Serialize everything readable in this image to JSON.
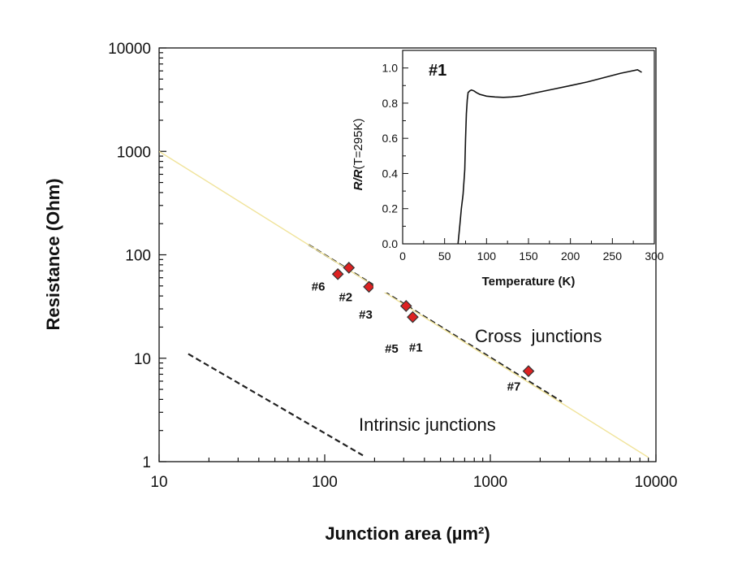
{
  "chart_data": [
    {
      "type": "scatter",
      "xlabel": "Junction area (µm²)",
      "ylabel": "Resistance (Ohm)",
      "xscale": "log",
      "yscale": "log",
      "xlim": [
        10,
        10000
      ],
      "ylim": [
        1,
        10000
      ],
      "x_ticks": [
        {
          "v": 10,
          "label": "10"
        },
        {
          "v": 100,
          "label": "100"
        },
        {
          "v": 1000,
          "label": "1000"
        },
        {
          "v": 10000,
          "label": "10000"
        }
      ],
      "y_ticks": [
        {
          "v": 1,
          "label": "1"
        },
        {
          "v": 10,
          "label": "10"
        },
        {
          "v": 100,
          "label": "100"
        },
        {
          "v": 1000,
          "label": "1000"
        },
        {
          "v": 10000,
          "label": "10000"
        }
      ],
      "grid": false,
      "marker_color": "#dd2222",
      "points": [
        {
          "label": "#6",
          "x": 120,
          "y": 65
        },
        {
          "label": "#2",
          "x": 140,
          "y": 75
        },
        {
          "label": "#3",
          "x": 185,
          "y": 49
        },
        {
          "label": "#1",
          "x": 310,
          "y": 32
        },
        {
          "label": "#5",
          "x": 340,
          "y": 25
        },
        {
          "label": "#7",
          "x": 1700,
          "y": 7.5
        }
      ],
      "lines": [
        {
          "style": "dashed",
          "color": "#222222",
          "x": [
            80,
            2700
          ],
          "y": [
            125,
            3.8
          ]
        },
        {
          "style": "dashed",
          "color": "#222222",
          "x": [
            15,
            170
          ],
          "y": [
            11,
            1.15
          ]
        },
        {
          "style": "solid",
          "color": "#f0e39a",
          "x": [
            10,
            9000
          ],
          "y": [
            1000,
            1.1
          ]
        }
      ],
      "annotations": [
        "Cross  junctions",
        "Intrinsic junctions"
      ]
    },
    {
      "type": "line",
      "title": "#1",
      "xlabel": "Temperature (K)",
      "ylabel_italic": "R/R",
      "ylabel_rest": "(T=295K)",
      "xlim": [
        0,
        300
      ],
      "ylim": [
        0,
        1.1
      ],
      "x_ticks": [
        0,
        50,
        100,
        150,
        200,
        250,
        300
      ],
      "y_ticks": [
        {
          "v": 0.0,
          "label": "0.0"
        },
        {
          "v": 0.2,
          "label": "0.2"
        },
        {
          "v": 0.4,
          "label": "0.4"
        },
        {
          "v": 0.6,
          "label": "0.6"
        },
        {
          "v": 0.8,
          "label": "0.8"
        },
        {
          "v": 1.0,
          "label": "1.0"
        }
      ],
      "series": [
        {
          "x": [
            66,
            68,
            70,
            72,
            74,
            75,
            76,
            77,
            78,
            80,
            82,
            85,
            88,
            92,
            96,
            100,
            110,
            120,
            130,
            140,
            150,
            160,
            180,
            200,
            220,
            240,
            260,
            270,
            280,
            285
          ],
          "y": [
            0.0,
            0.1,
            0.2,
            0.28,
            0.42,
            0.6,
            0.74,
            0.82,
            0.86,
            0.87,
            0.875,
            0.87,
            0.86,
            0.85,
            0.845,
            0.84,
            0.835,
            0.833,
            0.835,
            0.84,
            0.85,
            0.86,
            0.88,
            0.9,
            0.92,
            0.945,
            0.97,
            0.98,
            0.99,
            0.975
          ]
        }
      ]
    }
  ]
}
